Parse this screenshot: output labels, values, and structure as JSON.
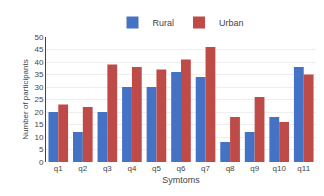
{
  "chart_data": {
    "type": "bar",
    "categories": [
      "q1",
      "q2",
      "q3",
      "q4",
      "q5",
      "q6",
      "q7",
      "q8",
      "q9",
      "q10",
      "q11"
    ],
    "series": [
      {
        "name": "Rural",
        "color": "#4472C4",
        "values": [
          20,
          12,
          20,
          30,
          30,
          36,
          34,
          8,
          12,
          18,
          38
        ]
      },
      {
        "name": "Urban",
        "color": "#BE4B48",
        "values": [
          23,
          22,
          39,
          38,
          37,
          41,
          46,
          18,
          26,
          16,
          35
        ]
      }
    ],
    "xlabel": "Symtoms",
    "ylabel": "Number of participants",
    "ylim": [
      0,
      50
    ],
    "yticks": [
      0,
      5,
      10,
      15,
      20,
      25,
      30,
      35,
      40,
      45,
      50
    ],
    "grid": true,
    "legend": "top"
  }
}
